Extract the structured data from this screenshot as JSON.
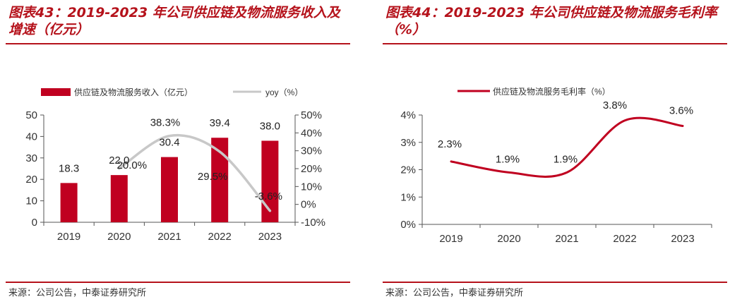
{
  "left_panel": {
    "title": "图表43：2019-2023 年公司供应链及物流服务收入及增速（亿元）",
    "source": "来源：公司公告，中泰证券研究所"
  },
  "right_panel": {
    "title": "图表44：2019-2023 年公司供应链及物流服务毛利率（%）",
    "source": "来源：公司公告，中泰证券研究所"
  },
  "colors": {
    "accent": "#b5121b",
    "bar": "#c00020",
    "yoy_line": "#c8c8c8",
    "axis": "#555555"
  },
  "chart_data": [
    {
      "type": "bar",
      "categories": [
        "2019",
        "2020",
        "2021",
        "2022",
        "2023"
      ],
      "series": [
        {
          "name": "供应链及物流服务收入（亿元）",
          "kind": "bar",
          "axis": "left",
          "values": [
            18.3,
            22.0,
            30.4,
            39.4,
            38.0
          ],
          "labels": [
            "18.3",
            "22.0",
            "30.4",
            "39.4",
            "38.0"
          ]
        },
        {
          "name": "yoy（%）",
          "kind": "line",
          "axis": "right",
          "values": [
            null,
            20.0,
            38.3,
            29.5,
            -3.6
          ],
          "labels": [
            "",
            "20.0%",
            "38.3%",
            "29.5%",
            "-3.6%"
          ]
        }
      ],
      "y_left": {
        "ylim": [
          0,
          50
        ],
        "ticks": [
          0,
          10,
          20,
          30,
          40,
          50
        ],
        "tick_labels": [
          "0",
          "10",
          "20",
          "30",
          "40",
          "50"
        ]
      },
      "y_right": {
        "ylim": [
          -10,
          50
        ],
        "ticks": [
          -10,
          0,
          10,
          20,
          30,
          40,
          50
        ],
        "tick_labels": [
          "-10%",
          "0%",
          "10%",
          "20%",
          "30%",
          "40%",
          "50%"
        ]
      },
      "legend": [
        "供应链及物流服务收入（亿元）",
        "yoy（%）"
      ],
      "legend_position": "top",
      "grid": false
    },
    {
      "type": "line",
      "categories": [
        "2019",
        "2020",
        "2021",
        "2022",
        "2023"
      ],
      "series": [
        {
          "name": "供应链及物流服务毛利率（%）",
          "values": [
            2.3,
            1.9,
            1.9,
            3.8,
            3.6
          ],
          "labels": [
            "2.3%",
            "1.9%",
            "1.9%",
            "3.8%",
            "3.6%"
          ]
        }
      ],
      "y": {
        "ylim": [
          0,
          4
        ],
        "ticks": [
          0,
          1,
          2,
          3,
          4
        ],
        "tick_labels": [
          "0%",
          "1%",
          "2%",
          "3%",
          "4%"
        ]
      },
      "legend": [
        "供应链及物流服务毛利率（%）"
      ],
      "legend_position": "top",
      "grid": false
    }
  ]
}
